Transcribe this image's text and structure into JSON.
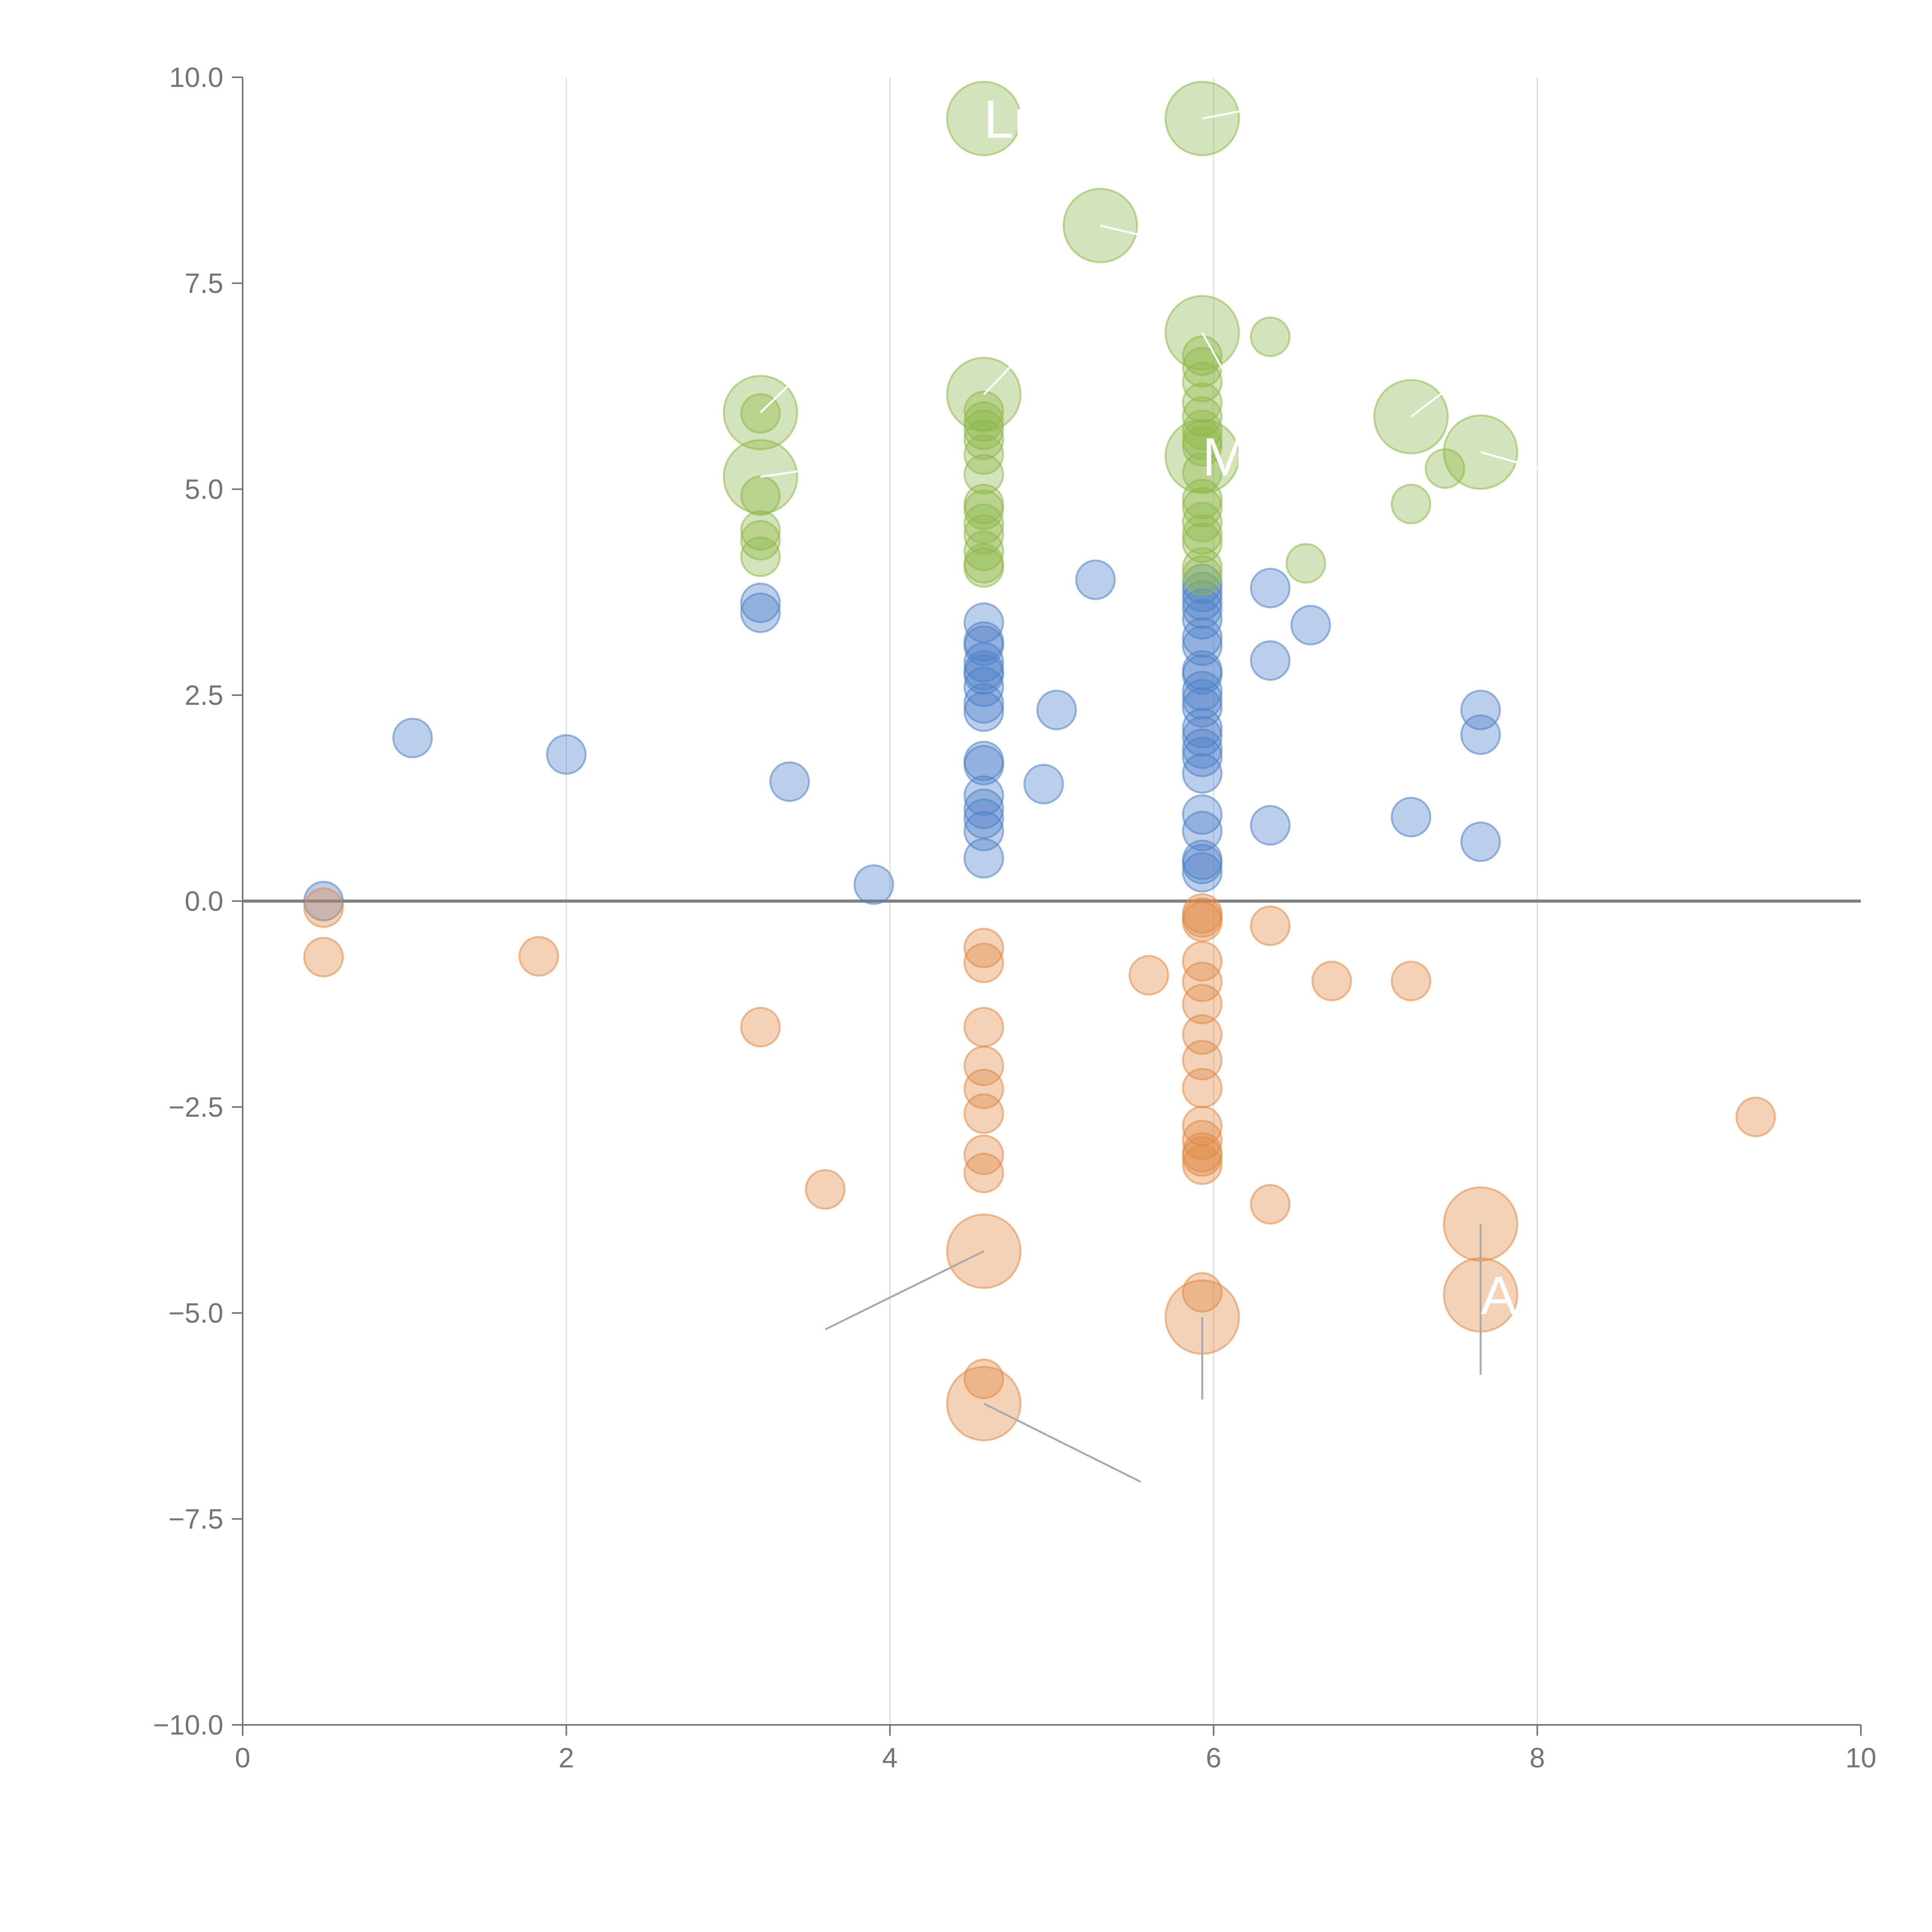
{
  "chart_data": {
    "type": "scatter",
    "title": "",
    "xlabel": "",
    "ylabel": "",
    "xlim": [
      0,
      10
    ],
    "ylim": [
      -10,
      10
    ],
    "x_ticks": [
      0,
      2,
      4,
      6,
      8,
      10
    ],
    "y_ticks": [
      -10,
      -7.5,
      -5,
      -2.5,
      0,
      2.5,
      5,
      7.5,
      10
    ],
    "x_tick_labels": [
      "0",
      "2",
      "4",
      "6",
      "8",
      "10"
    ],
    "y_tick_labels": [
      "−10.0",
      "−7.5",
      "−5.0",
      "−2.5",
      "0.0",
      "2.5",
      "5.0",
      "7.5",
      "10.0"
    ],
    "grid": "vertical",
    "zero_line": true,
    "colors": {
      "blue": "#4f81c7",
      "orange": "#e08a45",
      "green": "#8fb84a",
      "axis": "#757575",
      "grid": "#dddddd",
      "zero": "#808080",
      "leader": "#aaaaaa",
      "label": "#ffffff"
    },
    "series": [
      {
        "name": "blue",
        "color": "#4f81c7",
        "points": [
          [
            0.5,
            0.0
          ],
          [
            1.05,
            1.98
          ],
          [
            2.0,
            1.78
          ],
          [
            3.2,
            3.62
          ],
          [
            3.2,
            3.5
          ],
          [
            3.38,
            1.45
          ],
          [
            3.9,
            0.2
          ],
          [
            4.58,
            3.38
          ],
          [
            4.58,
            3.15
          ],
          [
            4.58,
            3.1
          ],
          [
            4.58,
            2.9
          ],
          [
            4.58,
            2.8
          ],
          [
            4.58,
            2.75
          ],
          [
            4.58,
            2.6
          ],
          [
            4.58,
            2.4
          ],
          [
            4.58,
            2.3
          ],
          [
            4.58,
            1.7
          ],
          [
            4.58,
            1.65
          ],
          [
            4.58,
            1.28
          ],
          [
            4.58,
            1.12
          ],
          [
            4.58,
            1.0
          ],
          [
            4.58,
            0.85
          ],
          [
            4.58,
            0.52
          ],
          [
            4.95,
            1.42
          ],
          [
            5.03,
            2.32
          ],
          [
            5.27,
            3.9
          ],
          [
            5.93,
            3.85
          ],
          [
            5.93,
            3.75
          ],
          [
            5.93,
            3.65
          ],
          [
            5.93,
            3.55
          ],
          [
            5.93,
            3.42
          ],
          [
            5.93,
            3.2
          ],
          [
            5.93,
            3.1
          ],
          [
            5.93,
            2.8
          ],
          [
            5.93,
            2.75
          ],
          [
            5.93,
            2.55
          ],
          [
            5.93,
            2.45
          ],
          [
            5.93,
            2.35
          ],
          [
            5.93,
            2.1
          ],
          [
            5.93,
            2.0
          ],
          [
            5.93,
            1.85
          ],
          [
            5.93,
            1.75
          ],
          [
            5.93,
            1.55
          ],
          [
            5.93,
            1.05
          ],
          [
            5.93,
            0.85
          ],
          [
            5.93,
            0.5
          ],
          [
            5.93,
            0.45
          ],
          [
            5.93,
            0.35
          ],
          [
            6.35,
            3.8
          ],
          [
            6.35,
            2.92
          ],
          [
            6.35,
            0.92
          ],
          [
            6.6,
            3.35
          ],
          [
            7.22,
            1.02
          ],
          [
            7.65,
            2.32
          ],
          [
            7.65,
            2.02
          ],
          [
            7.65,
            0.72
          ]
        ]
      },
      {
        "name": "orange",
        "color": "#e08a45",
        "points": [
          [
            0.5,
            -0.08
          ],
          [
            0.5,
            -0.68
          ],
          [
            1.83,
            -0.67
          ],
          [
            3.2,
            -1.53
          ],
          [
            3.6,
            -3.5
          ],
          [
            4.58,
            -0.57
          ],
          [
            4.58,
            -0.75
          ],
          [
            4.58,
            -1.53
          ],
          [
            4.58,
            -2.0
          ],
          [
            4.58,
            -2.28
          ],
          [
            4.58,
            -2.58
          ],
          [
            4.58,
            -3.08
          ],
          [
            4.58,
            -3.3
          ],
          [
            4.58,
            -5.8
          ],
          [
            5.6,
            -0.9
          ],
          [
            5.93,
            -0.15
          ],
          [
            5.93,
            -0.2
          ],
          [
            5.93,
            -0.25
          ],
          [
            5.93,
            -0.73
          ],
          [
            5.93,
            -0.98
          ],
          [
            5.93,
            -1.25
          ],
          [
            5.93,
            -1.62
          ],
          [
            5.93,
            -1.93
          ],
          [
            5.93,
            -2.27
          ],
          [
            5.93,
            -2.73
          ],
          [
            5.93,
            -2.9
          ],
          [
            5.93,
            -3.05
          ],
          [
            5.93,
            -3.1
          ],
          [
            5.93,
            -3.2
          ],
          [
            5.93,
            -4.75
          ],
          [
            6.35,
            -0.3
          ],
          [
            6.35,
            -3.68
          ],
          [
            6.73,
            -0.97
          ],
          [
            7.22,
            -0.97
          ],
          [
            9.35,
            -2.62
          ]
        ]
      },
      {
        "name": "green",
        "color": "#8fb84a",
        "points": [
          [
            3.2,
            5.92
          ],
          [
            3.2,
            4.92
          ],
          [
            3.2,
            4.5
          ],
          [
            3.2,
            4.38
          ],
          [
            3.2,
            4.18
          ],
          [
            4.58,
            5.95
          ],
          [
            4.58,
            5.82
          ],
          [
            4.58,
            5.72
          ],
          [
            4.58,
            5.6
          ],
          [
            4.58,
            5.42
          ],
          [
            4.58,
            5.18
          ],
          [
            4.58,
            4.82
          ],
          [
            4.58,
            4.75
          ],
          [
            4.58,
            4.58
          ],
          [
            4.58,
            4.45
          ],
          [
            4.58,
            4.25
          ],
          [
            4.58,
            4.1
          ],
          [
            4.58,
            4.05
          ],
          [
            5.93,
            6.62
          ],
          [
            5.93,
            6.48
          ],
          [
            5.93,
            6.3
          ],
          [
            5.93,
            6.05
          ],
          [
            5.93,
            5.88
          ],
          [
            5.93,
            5.72
          ],
          [
            5.93,
            5.6
          ],
          [
            5.93,
            5.52
          ],
          [
            5.93,
            5.2
          ],
          [
            5.93,
            4.88
          ],
          [
            5.93,
            4.78
          ],
          [
            5.93,
            4.6
          ],
          [
            5.93,
            4.45
          ],
          [
            5.93,
            4.35
          ],
          [
            5.93,
            4.05
          ],
          [
            5.93,
            3.95
          ],
          [
            6.35,
            6.85
          ],
          [
            6.57,
            4.1
          ],
          [
            7.22,
            4.82
          ],
          [
            7.43,
            5.25
          ]
        ]
      }
    ],
    "highlights": [
      {
        "series": "green",
        "x": 4.58,
        "y": 9.5,
        "label": "Li",
        "lx": 4.58,
        "ly": 9.5
      },
      {
        "series": "green",
        "x": 5.93,
        "y": 9.5,
        "label": "",
        "lx": 6.2,
        "ly": 9.6
      },
      {
        "series": "green",
        "x": 5.3,
        "y": 8.2,
        "label": "",
        "lx": 5.95,
        "ly": 7.9
      },
      {
        "series": "green",
        "x": 5.93,
        "y": 6.9,
        "label": "",
        "lx": 6.1,
        "ly": 6.3
      },
      {
        "series": "green",
        "x": 4.58,
        "y": 6.15,
        "label": "",
        "lx": 4.8,
        "ly": 6.6
      },
      {
        "series": "green",
        "x": 3.2,
        "y": 5.93,
        "label": "",
        "lx": 3.5,
        "ly": 6.5
      },
      {
        "series": "green",
        "x": 3.2,
        "y": 5.15,
        "label": "",
        "lx": 3.9,
        "ly": 5.35
      },
      {
        "series": "green",
        "x": 7.22,
        "y": 5.88,
        "label": "",
        "lx": 7.6,
        "ly": 6.45
      },
      {
        "series": "green",
        "x": 7.65,
        "y": 5.45,
        "label": "",
        "lx": 8.1,
        "ly": 5.2
      },
      {
        "series": "green",
        "x": 5.93,
        "y": 5.4,
        "label": "M",
        "lx": 5.93,
        "ly": 5.4
      },
      {
        "series": "orange",
        "x": 4.58,
        "y": -4.25,
        "label": "",
        "lx": 3.6,
        "ly": -5.2
      },
      {
        "series": "orange",
        "x": 5.93,
        "y": -5.05,
        "label": "",
        "lx": 5.93,
        "ly": -6.05
      },
      {
        "series": "orange",
        "x": 7.65,
        "y": -3.92,
        "label": "",
        "lx": 7.65,
        "ly": -5.75
      },
      {
        "series": "orange",
        "x": 7.65,
        "y": -4.78,
        "label": "A",
        "lx": 7.65,
        "ly": -4.78
      },
      {
        "series": "orange",
        "x": 4.58,
        "y": -6.1,
        "label": "",
        "lx": 5.55,
        "ly": -7.05
      }
    ]
  }
}
